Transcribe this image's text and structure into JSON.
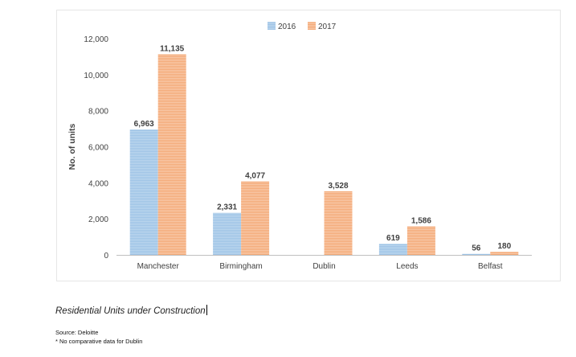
{
  "chart_data": {
    "type": "bar",
    "categories": [
      "Manchester",
      "Birmingham",
      "Dublin",
      "Leeds",
      "Belfast"
    ],
    "series": [
      {
        "name": "2016",
        "values": [
          6963,
          2331,
          null,
          619,
          56
        ],
        "labels": [
          "6,963",
          "2,331",
          "",
          "619",
          "56"
        ],
        "color": "#9dc3e6"
      },
      {
        "name": "2017",
        "values": [
          11135,
          4077,
          3528,
          1586,
          180
        ],
        "labels": [
          "11,135",
          "4,077",
          "3,528",
          "1,586",
          "180"
        ],
        "color": "#f4b183"
      }
    ],
    "ylabel": "No. of units",
    "ylim": [
      0,
      12000
    ],
    "yticks": [
      0,
      2000,
      4000,
      6000,
      8000,
      10000,
      12000
    ],
    "ytick_labels": [
      "0",
      "2,000",
      "4,000",
      "6,000",
      "8,000",
      "10,000",
      "12,000"
    ],
    "legend_position": "top-center",
    "grid": false
  },
  "caption": "Residential Units under Construction",
  "source": "Source: Deloitte",
  "footnote": "* No comparative data for Dublin"
}
